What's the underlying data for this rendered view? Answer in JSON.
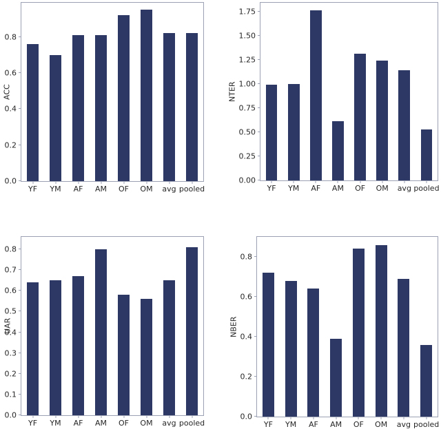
{
  "figure": {
    "background": "#ffffff"
  },
  "style": {
    "bar_color": "#2d3964",
    "spine_color": "#9ba1b3",
    "text_color": "#262626"
  },
  "chart_data": [
    {
      "id": "acc",
      "type": "bar",
      "title": "",
      "xlabel": "",
      "ylabel": "ACC",
      "categories": [
        "YF",
        "YM",
        "AF",
        "AM",
        "OF",
        "OM",
        "avg",
        "pooled"
      ],
      "values": [
        0.76,
        0.7,
        0.81,
        0.81,
        0.92,
        0.95,
        0.82,
        0.82
      ],
      "ylim": [
        0,
        0.99
      ],
      "yticks": [
        "0.0",
        "0.2",
        "0.4",
        "0.6",
        "0.8"
      ],
      "grid": false,
      "legend": null
    },
    {
      "id": "nter",
      "type": "bar",
      "title": "",
      "xlabel": "",
      "ylabel": "NTER",
      "categories": [
        "YF",
        "YM",
        "AF",
        "AM",
        "OF",
        "OM",
        "avg",
        "pooled"
      ],
      "values": [
        0.99,
        1.0,
        1.76,
        0.61,
        1.31,
        1.24,
        1.14,
        0.53
      ],
      "ylim": [
        0,
        1.84
      ],
      "yticks": [
        "0.00",
        "0.25",
        "0.50",
        "0.75",
        "1.00",
        "1.25",
        "1.50",
        "1.75"
      ],
      "grid": false,
      "legend": null
    },
    {
      "id": "uar",
      "type": "bar",
      "title": "",
      "xlabel": "",
      "ylabel": "UAR",
      "categories": [
        "YF",
        "YM",
        "AF",
        "AM",
        "OF",
        "OM",
        "avg",
        "pooled"
      ],
      "values": [
        0.64,
        0.65,
        0.67,
        0.8,
        0.58,
        0.56,
        0.65,
        0.81
      ],
      "ylim": [
        0,
        0.86
      ],
      "yticks": [
        "0.0",
        "0.1",
        "0.2",
        "0.3",
        "0.4",
        "0.5",
        "0.6",
        "0.7",
        "0.8"
      ],
      "grid": false,
      "legend": null
    },
    {
      "id": "nber",
      "type": "bar",
      "title": "",
      "xlabel": "",
      "ylabel": "NBER",
      "categories": [
        "YF",
        "YM",
        "AF",
        "AM",
        "OF",
        "OM",
        "avg",
        "pooled"
      ],
      "values": [
        0.72,
        0.68,
        0.64,
        0.39,
        0.84,
        0.86,
        0.69,
        0.36
      ],
      "ylim": [
        0,
        0.9
      ],
      "yticks": [
        "0.0",
        "0.2",
        "0.4",
        "0.6",
        "0.8"
      ],
      "grid": false,
      "legend": null
    }
  ]
}
